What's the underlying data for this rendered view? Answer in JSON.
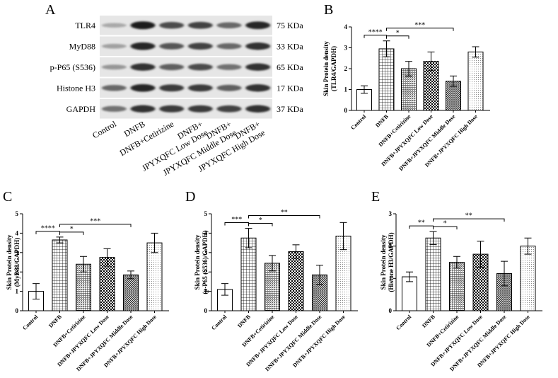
{
  "panel_letters": [
    "A",
    "B",
    "C",
    "D",
    "E"
  ],
  "blot": {
    "rows": [
      {
        "name": "TLR4",
        "size": "75 KDa"
      },
      {
        "name": "MyD88",
        "size": "33 KDa"
      },
      {
        "name": "p-P65 (S536)",
        "size": "65 KDa"
      },
      {
        "name": "Histone H3",
        "size": "17 KDa"
      },
      {
        "name": "GAPDH",
        "size": "37 KDa"
      }
    ],
    "lanes": [
      "Control",
      "DNFB",
      "DNFB+Cetirizine",
      "DNFB+\nJPYXQFC Low Dose",
      "DNFB+\nJPYXQFC Middle Dose",
      "DNFB+\nJPYXQFC High Dose"
    ],
    "band_intensity": [
      [
        0.25,
        1.0,
        0.75,
        0.8,
        0.6,
        0.95
      ],
      [
        0.3,
        0.95,
        0.7,
        0.8,
        0.6,
        0.9
      ],
      [
        0.35,
        0.9,
        0.65,
        0.75,
        0.55,
        0.9
      ],
      [
        0.6,
        0.95,
        0.85,
        0.85,
        0.65,
        0.9
      ],
      [
        0.55,
        0.9,
        0.85,
        0.85,
        0.8,
        0.9
      ]
    ]
  },
  "chart_data": [
    {
      "panel": "B",
      "type": "bar",
      "categories": [
        "Control",
        "DNFB",
        "DNFB+Cetirizine",
        "DNFB+JPYXQFC Low Dose",
        "DNFB+JPYXQFC Middle Dose",
        "DNFB+JPYXQFC High Dose"
      ],
      "values": [
        1.0,
        2.95,
        2.0,
        2.35,
        1.4,
        2.8
      ],
      "errors": [
        0.18,
        0.38,
        0.35,
        0.45,
        0.25,
        0.25
      ],
      "ylabel": "Skin Protein density\n(TLR4/GAPDH)",
      "ylim": [
        0,
        4
      ],
      "yticks": [
        "0",
        "1",
        "2",
        "3",
        "4"
      ],
      "significance": [
        {
          "from": 0,
          "to": 1,
          "label": "****"
        },
        {
          "from": 1,
          "to": 2,
          "label": "*"
        },
        {
          "from": 1,
          "to": 4,
          "label": "***"
        }
      ]
    },
    {
      "panel": "C",
      "type": "bar",
      "categories": [
        "Control",
        "DNFB",
        "DNFB+Cetirizine",
        "DNFB+JPYXQFC Low Dose",
        "DNFB+JPYXQFC Middle Dose",
        "DNFB+JPYXQFC High Dose"
      ],
      "values": [
        1.0,
        3.65,
        2.4,
        2.75,
        1.85,
        3.5
      ],
      "errors": [
        0.4,
        0.15,
        0.4,
        0.45,
        0.2,
        0.5
      ],
      "ylabel": "Skin Protein density\n(MyD88/GAPDH)",
      "ylim": [
        0,
        5
      ],
      "yticks": [
        "0",
        "1",
        "2",
        "3",
        "4",
        "5"
      ],
      "significance": [
        {
          "from": 0,
          "to": 1,
          "label": "****"
        },
        {
          "from": 1,
          "to": 2,
          "label": "*"
        },
        {
          "from": 1,
          "to": 4,
          "label": "***"
        }
      ]
    },
    {
      "panel": "D",
      "type": "bar",
      "categories": [
        "Control",
        "DNFB",
        "DNFB+Cetirizine",
        "DNFB+JPYXQFC Low Dose",
        "DNFB+JPYXQFC Middle Dose",
        "DNFB+JPYXQFC High Dose"
      ],
      "values": [
        1.1,
        3.75,
        2.45,
        3.05,
        1.85,
        3.85
      ],
      "errors": [
        0.3,
        0.5,
        0.4,
        0.35,
        0.5,
        0.7
      ],
      "ylabel": "Skin Protein density\n(p-P65 (S536)/GAPDH)",
      "ylim": [
        0,
        5
      ],
      "yticks": [
        "0",
        "1",
        "2",
        "3",
        "4",
        "5"
      ],
      "significance": [
        {
          "from": 0,
          "to": 1,
          "label": "***"
        },
        {
          "from": 1,
          "to": 2,
          "label": "*"
        },
        {
          "from": 1,
          "to": 4,
          "label": "**"
        }
      ]
    },
    {
      "panel": "E",
      "type": "bar",
      "categories": [
        "Control",
        "DNFB",
        "DNFB+Cetirizine",
        "DNFB+JPYXQFC Low Dose",
        "DNFB+JPYXQFC Middle Dose",
        "DNFB+JPYXQFC High Dose"
      ],
      "values": [
        1.05,
        2.25,
        1.5,
        1.75,
        1.15,
        2.0
      ],
      "errors": [
        0.15,
        0.2,
        0.18,
        0.4,
        0.38,
        0.25
      ],
      "ylabel": "Skin Protein density\n(Histone H3/GAPDH)",
      "ylim": [
        0,
        3
      ],
      "yticks": [
        "0",
        "1",
        "2",
        "3"
      ],
      "significance": [
        {
          "from": 0,
          "to": 1,
          "label": "**"
        },
        {
          "from": 1,
          "to": 2,
          "label": "*"
        },
        {
          "from": 1,
          "to": 4,
          "label": "**"
        }
      ]
    }
  ],
  "bar_patterns": [
    "solid-white",
    "grid",
    "dense-grid",
    "checker",
    "diagonal-hatch",
    "dots"
  ]
}
